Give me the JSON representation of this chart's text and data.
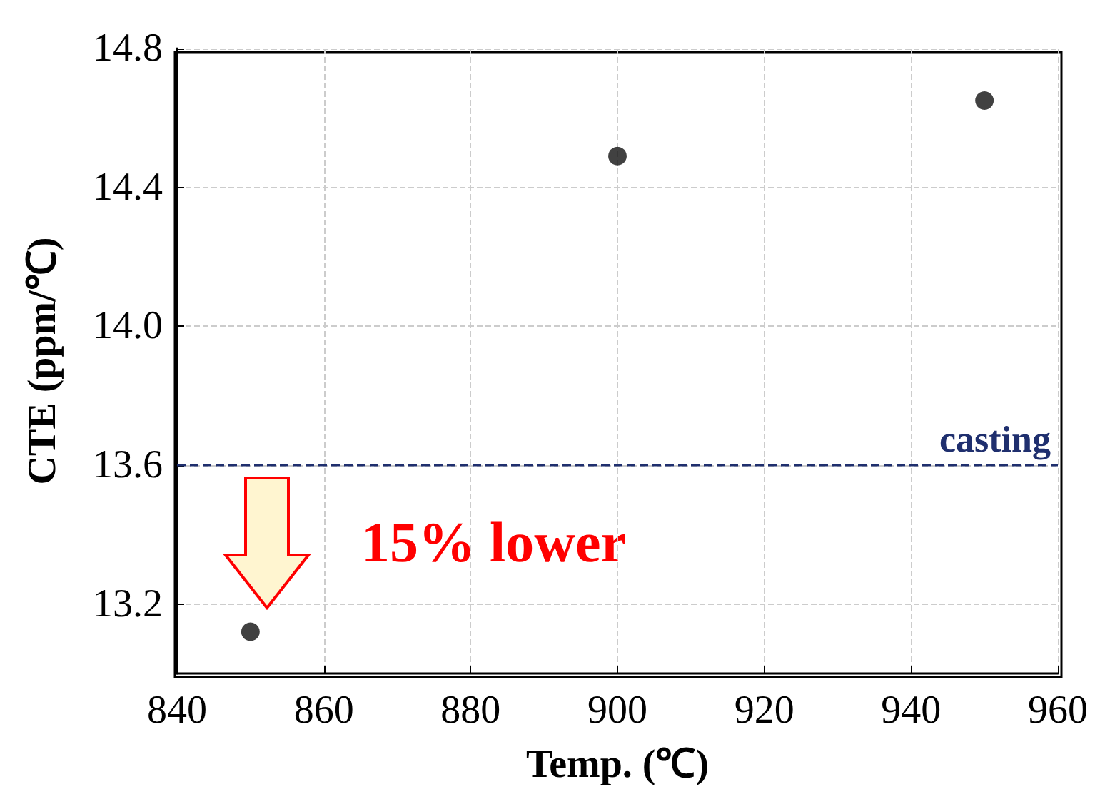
{
  "chart_data": {
    "type": "scatter",
    "xlabel": "Temp. (℃)",
    "ylabel": "CTE (ppm/℃)",
    "x": [
      850,
      900,
      950
    ],
    "series": [
      {
        "color": "#111111",
        "values": [
          13.12,
          14.49,
          14.65
        ]
      }
    ],
    "xlim": [
      840,
      960
    ],
    "xticks": [
      840,
      860,
      880,
      900,
      920,
      940,
      960
    ],
    "ylim": [
      13.0,
      14.8
    ],
    "yticks": [
      {
        "value": 13.2,
        "label": "13.2"
      },
      {
        "value": 13.6,
        "label": "13.6"
      },
      {
        "value": 14,
        "label": "14.0"
      },
      {
        "value": 14.4,
        "label": "14.4"
      },
      {
        "value": 14.8,
        "label": "14.8"
      }
    ],
    "ref_lines": [
      {
        "axis": "y",
        "value": 13.6,
        "label": "casting",
        "color": "#1f2f6e",
        "line_style": "dashed"
      }
    ],
    "annotations": [
      "15% lower"
    ],
    "grid": true,
    "marker": "circle"
  }
}
